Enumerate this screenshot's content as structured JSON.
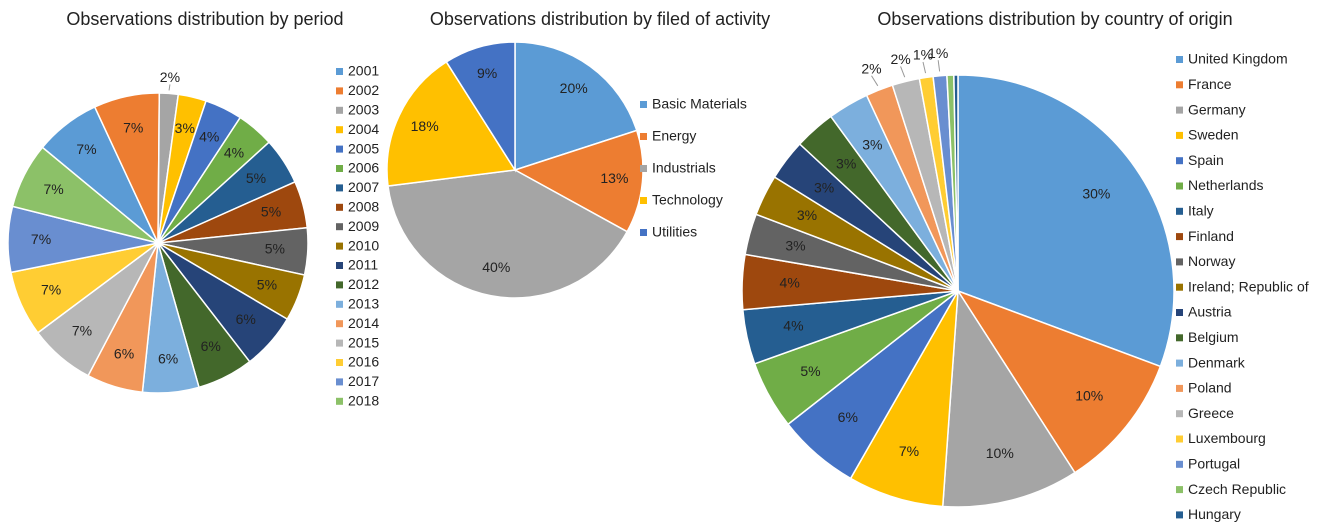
{
  "chart_data": [
    {
      "type": "pie",
      "title": "Observations distribution by period",
      "categories": [
        "2001",
        "2002",
        "2003",
        "2004",
        "2005",
        "2006",
        "2007",
        "2008",
        "2009",
        "2010",
        "2011",
        "2012",
        "2013",
        "2014",
        "2015",
        "2016",
        "2017",
        "2018"
      ],
      "values": [
        7,
        7,
        2,
        3,
        4,
        4,
        5,
        5,
        5,
        5,
        6,
        6,
        6,
        6,
        7,
        7,
        7,
        7
      ],
      "value_labels": [
        "7%",
        "7%",
        "2%",
        "3%",
        "4%",
        "4%",
        "5%",
        "5%",
        "5%",
        "5%",
        "6%",
        "6%",
        "6%",
        "6%",
        "7%",
        "7%",
        "7%",
        "7%"
      ],
      "colors": [
        "#5b9bd5",
        "#ed7d31",
        "#a5a5a5",
        "#ffc000",
        "#4472c4",
        "#70ad47",
        "#255e91",
        "#9e480e",
        "#636363",
        "#997300",
        "#264478",
        "#43682b",
        "#7cafdd",
        "#f1975a",
        "#b7b7b7",
        "#ffcd33",
        "#698ed0",
        "#8cc168"
      ]
    },
    {
      "type": "pie",
      "title": "Observations distribution by filed of activity",
      "categories": [
        "Basic Materials",
        "Energy",
        "Industrials",
        "Technology",
        "Utilities"
      ],
      "values": [
        20,
        13,
        40,
        18,
        9
      ],
      "value_labels": [
        "20%",
        "13%",
        "40%",
        "18%",
        "9%"
      ],
      "colors": [
        "#5b9bd5",
        "#ed7d31",
        "#a5a5a5",
        "#ffc000",
        "#4472c4"
      ]
    },
    {
      "type": "pie",
      "title": "Observations distribution by country of origin",
      "categories": [
        "United Kingdom",
        "France",
        "Germany",
        "Sweden",
        "Spain",
        "Netherlands",
        "Italy",
        "Finland",
        "Norway",
        "Ireland; Republic of",
        "Austria",
        "Belgium",
        "Denmark",
        "Poland",
        "Greece",
        "Luxembourg",
        "Portugal",
        "Czech Republic",
        "Hungary"
      ],
      "values": [
        30,
        10,
        10,
        7,
        6,
        5,
        4,
        4,
        3,
        3,
        3,
        3,
        3,
        2,
        2,
        1,
        1,
        0.5,
        0.3
      ],
      "value_labels": [
        "30%",
        "10%",
        "10%",
        "7%",
        "6%",
        "5%",
        "4%",
        "4%",
        "3%",
        "3%",
        "3%",
        "3%",
        "3%",
        "2%",
        "2%",
        "1%",
        "1%",
        null,
        null
      ],
      "colors": [
        "#5b9bd5",
        "#ed7d31",
        "#a5a5a5",
        "#ffc000",
        "#4472c4",
        "#70ad47",
        "#255e91",
        "#9e480e",
        "#636363",
        "#997300",
        "#264478",
        "#43682b",
        "#7cafdd",
        "#f1975a",
        "#b7b7b7",
        "#ffcd33",
        "#698ed0",
        "#8cc168",
        "#255e91"
      ]
    }
  ]
}
